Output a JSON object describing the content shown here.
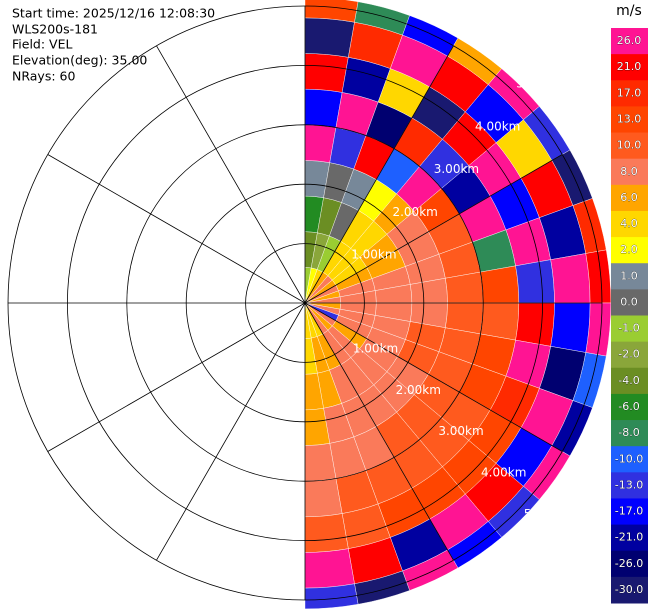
{
  "chart_data": {
    "type": "ppi",
    "header": [
      "Start time: 2025/12/16 12:08:30",
      "WLS200s-181",
      "Field: VEL",
      "Elevation(deg): 35.00",
      "NRays: 60"
    ],
    "colorbar": {
      "unit": "m/s",
      "levels": [
        {
          "value": 26,
          "label": "26.0"
        },
        {
          "value": 21,
          "label": "21.0"
        },
        {
          "value": 17,
          "label": "17.0"
        },
        {
          "value": 13,
          "label": "13.0"
        },
        {
          "value": 10,
          "label": "10.0"
        },
        {
          "value": 8,
          "label": "8.0"
        },
        {
          "value": 6,
          "label": "6.0"
        },
        {
          "value": 4,
          "label": "4.0"
        },
        {
          "value": 2,
          "label": "2.0"
        },
        {
          "value": 1,
          "label": "1.0"
        },
        {
          "value": 0,
          "label": "0.0"
        },
        {
          "value": -1,
          "label": "-1.0"
        },
        {
          "value": -2,
          "label": "-2.0"
        },
        {
          "value": -4,
          "label": "-4.0"
        },
        {
          "value": -6,
          "label": "-6.0"
        },
        {
          "value": -8,
          "label": "-8.0"
        },
        {
          "value": -10,
          "label": "-10.0"
        },
        {
          "value": -13,
          "label": "-13.0"
        },
        {
          "value": -17,
          "label": "-17.0"
        },
        {
          "value": -21,
          "label": "-21.0"
        },
        {
          "value": -26,
          "label": "-26.0"
        },
        {
          "value": -30,
          "label": "-30.0"
        }
      ],
      "colors": [
        "#ff1493",
        "#ff0000",
        "#ff2a00",
        "#ff4500",
        "#ff5a1e",
        "#fa7a5a",
        "#ffa500",
        "#ffd700",
        "#ffff00",
        "#778899",
        "#696969",
        "#9acd32",
        "#8aa63a",
        "#6b8e23",
        "#228b22",
        "#2e8b57",
        "#1e60ff",
        "#3030e0",
        "#0000ff",
        "#0000a0",
        "#000070",
        "#191970"
      ]
    },
    "rings": [
      {
        "value": 1,
        "label": "1.00km"
      },
      {
        "value": 2,
        "label": "2.00km"
      },
      {
        "value": 3,
        "label": "3.00km"
      },
      {
        "value": 4,
        "label": "4.00km"
      },
      {
        "value": 5,
        "label": "5.00km"
      }
    ],
    "azimuths": [
      0,
      10,
      20,
      30,
      40,
      50,
      60,
      70,
      80,
      90,
      100,
      110,
      120,
      130,
      140,
      150,
      160,
      170,
      180
    ],
    "ranges": [
      0,
      0.6,
      1.2,
      1.8,
      2.4,
      3.0,
      3.6,
      4.2,
      4.8,
      5.15
    ],
    "values": [
      [
        -1,
        -4,
        -6,
        1,
        26,
        -17,
        21,
        -30,
        13
      ],
      [
        2,
        -2,
        -4,
        0,
        -13,
        26,
        -21,
        17,
        -8
      ],
      [
        4,
        -1,
        0,
        1,
        21,
        -26,
        4,
        26,
        -17
      ],
      [
        6,
        4,
        4,
        2,
        -10,
        17,
        -30,
        21,
        6
      ],
      [
        8,
        4,
        4,
        6,
        26,
        -13,
        21,
        -17,
        26
      ],
      [
        6,
        4,
        6,
        8,
        13,
        -21,
        26,
        4,
        -13
      ],
      [
        8,
        6,
        6,
        8,
        10,
        26,
        -17,
        21,
        -30
      ],
      [
        6,
        8,
        8,
        8,
        10,
        -8,
        26,
        -21,
        17
      ],
      [
        8,
        8,
        8,
        8,
        10,
        13,
        -13,
        26,
        21
      ],
      [
        6,
        8,
        8,
        8,
        10,
        10,
        21,
        -17,
        26
      ],
      [
        8,
        8,
        8,
        10,
        10,
        13,
        26,
        -26,
        -10
      ],
      [
        -13,
        8,
        8,
        10,
        10,
        13,
        17,
        26,
        -21
      ],
      [
        8,
        6,
        8,
        8,
        10,
        10,
        13,
        -17,
        26
      ],
      [
        6,
        8,
        8,
        8,
        10,
        10,
        13,
        21,
        -13
      ],
      [
        8,
        8,
        8,
        8,
        10,
        10,
        13,
        26,
        -17
      ],
      [
        4,
        6,
        8,
        8,
        8,
        10,
        13,
        -21,
        26
      ],
      [
        4,
        6,
        6,
        8,
        8,
        10,
        10,
        21,
        -30
      ],
      [
        4,
        4,
        6,
        6,
        8,
        8,
        10,
        26,
        -13
      ]
    ]
  }
}
